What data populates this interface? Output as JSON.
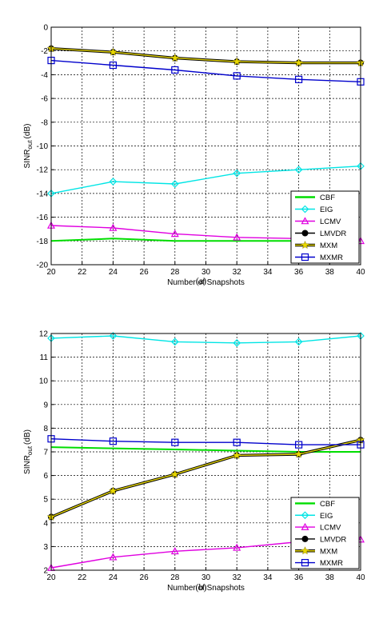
{
  "chart_data": [
    {
      "type": "line",
      "caption": "(a)",
      "xlabel": "Number of Snapshots",
      "ylabel": "SINR",
      "ylabel_sub": "out",
      "ylabel_unit": "(dB)",
      "x": [
        20,
        24,
        28,
        32,
        36,
        40
      ],
      "xlim": [
        20,
        40
      ],
      "ylim": [
        -20,
        0
      ],
      "xticks": [
        "20",
        "22",
        "24",
        "26",
        "28",
        "30",
        "32",
        "34",
        "36",
        "38",
        "40"
      ],
      "yticks": [
        "-20",
        "-18",
        "-16",
        "-14",
        "-12",
        "-10",
        "-8",
        "-6",
        "-4",
        "-2",
        "0"
      ],
      "grid": true,
      "legend_position": "bottom-right",
      "series": [
        {
          "name": "CBF",
          "color": "#00dd00",
          "marker": "none",
          "values": [
            -18.0,
            -17.8,
            -18.0,
            -18.0,
            -18.0,
            -18.0
          ]
        },
        {
          "name": "EIG",
          "color": "#00e5e5",
          "marker": "diamond",
          "values": [
            -14.0,
            -13.0,
            -13.2,
            -12.3,
            -12.0,
            -11.7
          ]
        },
        {
          "name": "LCMV",
          "color": "#e000e0",
          "marker": "triangle",
          "values": [
            -16.7,
            -16.9,
            -17.4,
            -17.7,
            -17.8,
            -18.0
          ]
        },
        {
          "name": "LMVDR",
          "color": "#000000",
          "marker": "circle",
          "values": [
            -1.8,
            -2.1,
            -2.6,
            -2.9,
            -3.0,
            -3.0
          ]
        },
        {
          "name": "MXM",
          "color": "#e8d800",
          "marker": "star",
          "values": [
            -1.8,
            -2.1,
            -2.6,
            -2.9,
            -3.0,
            -3.0
          ]
        },
        {
          "name": "MXMR",
          "color": "#0000cc",
          "marker": "square",
          "values": [
            -2.8,
            -3.2,
            -3.6,
            -4.1,
            -4.4,
            -4.6
          ]
        }
      ]
    },
    {
      "type": "line",
      "caption": "(b)",
      "xlabel": "Number of Snapshots",
      "ylabel": "SINR",
      "ylabel_sub": "out",
      "ylabel_unit": "(dB)",
      "x": [
        20,
        24,
        28,
        32,
        36,
        40
      ],
      "xlim": [
        20,
        40
      ],
      "ylim": [
        2,
        12
      ],
      "xticks": [
        "20",
        "22",
        "24",
        "26",
        "28",
        "30",
        "32",
        "34",
        "36",
        "38",
        "40"
      ],
      "yticks": [
        "2",
        "3",
        "4",
        "5",
        "6",
        "7",
        "8",
        "9",
        "10",
        "11",
        "12"
      ],
      "grid": true,
      "legend_position": "bottom-right",
      "series": [
        {
          "name": "CBF",
          "color": "#00dd00",
          "marker": "none",
          "values": [
            7.2,
            7.15,
            7.1,
            7.05,
            7.0,
            7.0
          ]
        },
        {
          "name": "EIG",
          "color": "#00e5e5",
          "marker": "diamond",
          "values": [
            11.8,
            11.9,
            11.65,
            11.6,
            11.65,
            11.9
          ]
        },
        {
          "name": "LCMV",
          "color": "#e000e0",
          "marker": "triangle",
          "values": [
            2.1,
            2.55,
            2.8,
            2.95,
            3.2,
            3.3
          ]
        },
        {
          "name": "LMVDR",
          "color": "#000000",
          "marker": "circle",
          "values": [
            4.25,
            5.35,
            6.05,
            6.85,
            6.9,
            7.5
          ]
        },
        {
          "name": "MXM",
          "color": "#e8d800",
          "marker": "star",
          "values": [
            4.25,
            5.35,
            6.05,
            6.85,
            6.9,
            7.5
          ]
        },
        {
          "name": "MXMR",
          "color": "#0000cc",
          "marker": "square",
          "values": [
            7.55,
            7.45,
            7.4,
            7.4,
            7.3,
            7.3
          ]
        }
      ]
    }
  ]
}
